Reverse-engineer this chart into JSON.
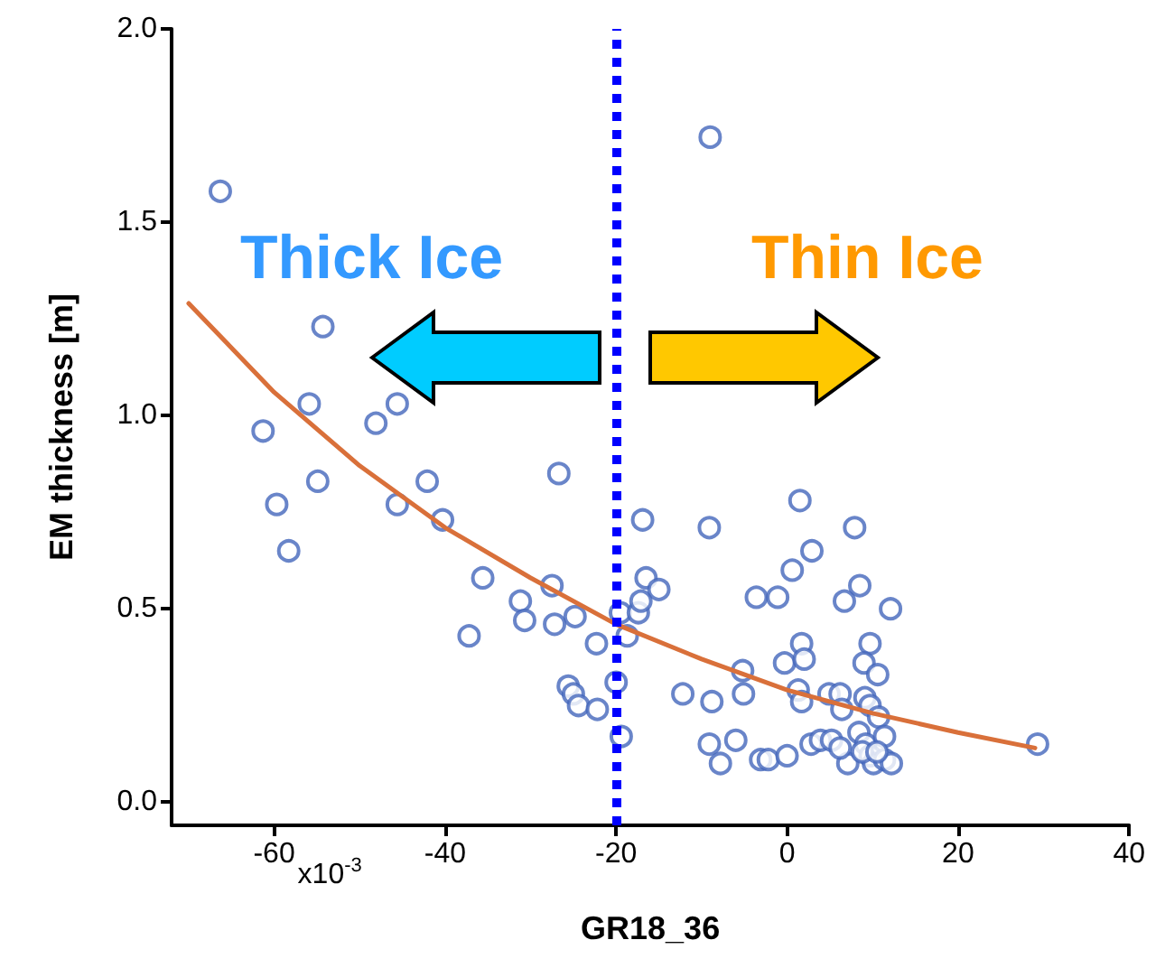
{
  "chart_data": {
    "type": "scatter",
    "xlabel": "GR18_36",
    "ylabel": "EM thickness [m]",
    "xlim": [
      -72,
      40
    ],
    "xticks": [
      -60,
      -40,
      -20,
      0,
      20,
      40
    ],
    "ylim": [
      -0.06,
      2.0
    ],
    "yticks": [
      {
        "value": 0,
        "label": "0.0"
      },
      0.5,
      {
        "value": 1,
        "label": "1.0"
      },
      1.5,
      {
        "value": 2,
        "label": "2.0"
      }
    ],
    "grid": false,
    "marker": "circle",
    "series": [
      {
        "color": "#4466bb",
        "x": [
          -66.3,
          -9.0,
          -54.3,
          -61.3,
          -55.9,
          -45.6,
          -48.1,
          -54.9,
          -59.7,
          -58.3,
          -42.1,
          -45.6,
          -40.3,
          -26.7,
          -35.6,
          -37.2,
          -31.2,
          -30.7,
          -27.5,
          -27.2,
          -24.8,
          -22.3,
          -25.6,
          -25.0,
          -24.4,
          -22.2,
          -20.0,
          -19.4,
          -19.5,
          -18.7,
          -17.4,
          -16.9,
          -16.5,
          -17.1,
          -15.0,
          -12.2,
          -9.1,
          -8.8,
          -9.1,
          -7.8,
          -6.0,
          -5.2,
          -5.1,
          -3.6,
          -1.1,
          -3.1,
          -2.2,
          0.0,
          -0.3,
          0.6,
          1.5,
          2.9,
          1.7,
          2.0,
          1.3,
          1.7,
          2.8,
          3.9,
          4.9,
          5.2,
          6.2,
          6.4,
          6.7,
          7.9,
          8.5,
          12.1,
          9.7,
          9.0,
          10.6,
          9.1,
          9.7,
          10.7,
          7.1,
          8.4,
          9.2,
          9.7,
          10.1,
          11.4,
          12.2,
          11.4,
          8.8,
          10.5,
          6.2,
          29.3
        ],
        "values": [
          1.58,
          1.72,
          1.23,
          0.96,
          1.03,
          1.03,
          0.98,
          0.83,
          0.77,
          0.65,
          0.83,
          0.77,
          0.73,
          0.85,
          0.58,
          0.43,
          0.52,
          0.47,
          0.56,
          0.46,
          0.48,
          0.41,
          0.3,
          0.28,
          0.25,
          0.24,
          0.31,
          0.17,
          0.49,
          0.43,
          0.49,
          0.73,
          0.58,
          0.52,
          0.55,
          0.28,
          0.71,
          0.26,
          0.15,
          0.1,
          0.16,
          0.34,
          0.28,
          0.53,
          0.53,
          0.11,
          0.11,
          0.12,
          0.36,
          0.6,
          0.78,
          0.65,
          0.41,
          0.37,
          0.29,
          0.26,
          0.15,
          0.16,
          0.28,
          0.16,
          0.28,
          0.24,
          0.52,
          0.71,
          0.56,
          0.5,
          0.41,
          0.36,
          0.33,
          0.27,
          0.25,
          0.22,
          0.1,
          0.18,
          0.15,
          0.12,
          0.1,
          0.11,
          0.1,
          0.17,
          0.13,
          0.13,
          0.14,
          0.15
        ]
      },
      {
        "type": "line",
        "color": "#d9703a",
        "marker": "none",
        "line_style": "solid",
        "x": [
          -70,
          -60,
          -50,
          -40,
          -30,
          -20,
          -10,
          0,
          10,
          20,
          29
        ],
        "values": [
          1.29,
          1.06,
          0.87,
          0.71,
          0.58,
          0.46,
          0.37,
          0.29,
          0.23,
          0.18,
          0.14
        ]
      }
    ],
    "ref_lines": [
      {
        "axis": "x",
        "value": -20,
        "color": "#0000ff",
        "line_style": "dotted"
      }
    ],
    "annotations": [
      "Thick Ice",
      "Thin Ice",
      "x10$^{-3}$"
    ]
  }
}
